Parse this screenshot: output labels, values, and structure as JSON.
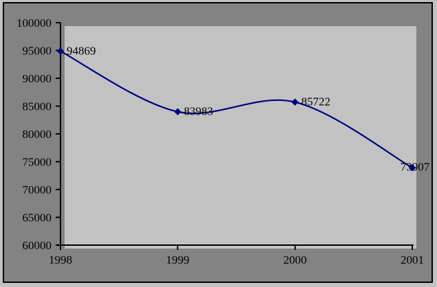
{
  "chart_data": {
    "type": "line",
    "title": "",
    "xlabel": "",
    "ylabel": "",
    "categories": [
      "1998",
      "1999",
      "2000",
      "2001"
    ],
    "series": [
      {
        "values": [
          94869,
          83983,
          85722,
          73907
        ],
        "data_labels": [
          "94869",
          "83983",
          "85722",
          "73907"
        ],
        "color": "#000080",
        "marker": "diamond",
        "smoothed": true
      }
    ],
    "ylim": [
      60000,
      100000
    ],
    "y_tick_step": 5000,
    "y_tick_labels": [
      "100000",
      "95000",
      "90000",
      "85000",
      "80000",
      "75000",
      "70000",
      "65000",
      "60000"
    ],
    "grid": false,
    "legend": false,
    "colors": {
      "outer_background": "#c1c1c1",
      "chart_background": "#838383",
      "plot_background": "#c2c2c2",
      "axis": "#000000",
      "text": "#000000",
      "frame_border": "#000000"
    }
  }
}
